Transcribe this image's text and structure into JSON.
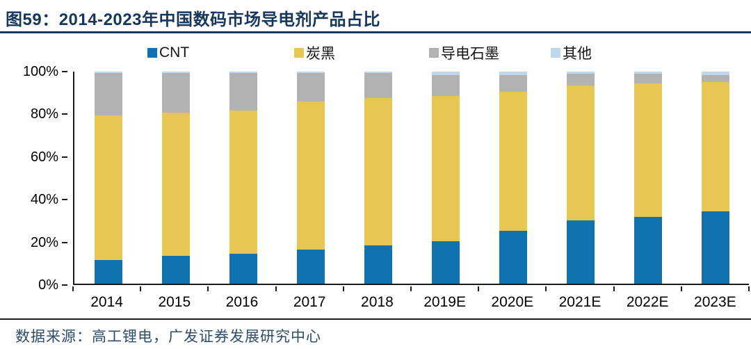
{
  "figure": {
    "title": "图59：2014-2023年中国数码市场导电剂产品占比",
    "source": "数据来源：高工锂电，广发证券发展研究中心"
  },
  "colors": {
    "title_navy": "#16365c",
    "axis_black": "#1a1a1a",
    "cnt_blue": "#1272b0",
    "carbon_black_yellow": "#e8c654",
    "graphite_gray": "#b2b2b2",
    "other_light_blue": "#bdd7ee"
  },
  "chart_data": {
    "type": "bar",
    "stacked": true,
    "unit": "%",
    "title": "图59：2014-2023年中国数码市场导电剂产品占比",
    "xlabel": "",
    "ylabel": "",
    "ylim": [
      0,
      100
    ],
    "grid": false,
    "legend_position": "top",
    "categories": [
      "2014",
      "2015",
      "2016",
      "2017",
      "2018",
      "2019E",
      "2020E",
      "2021E",
      "2022E",
      "2023E"
    ],
    "series": [
      {
        "name": "CNT",
        "color": "#1272b0",
        "values": [
          11,
          13,
          14,
          16,
          18,
          20,
          25,
          30,
          31.5,
          34
        ]
      },
      {
        "name": "炭黑",
        "color": "#e8c654",
        "values": [
          68.5,
          67.5,
          67.5,
          70,
          69.5,
          68.5,
          65.5,
          63.5,
          63,
          61
        ]
      },
      {
        "name": "导电石墨",
        "color": "#b2b2b2",
        "values": [
          20,
          19,
          18,
          13.5,
          12,
          10,
          8,
          5.5,
          4.5,
          3.5
        ]
      },
      {
        "name": "其他",
        "color": "#bdd7ee",
        "values": [
          0.5,
          0.5,
          0.5,
          0.5,
          0.5,
          1.5,
          1.5,
          1,
          1,
          1.5
        ]
      }
    ],
    "y_ticks": [
      {
        "label": "100%",
        "value": 100
      },
      {
        "label": "80%",
        "value": 80
      },
      {
        "label": "60%",
        "value": 60
      },
      {
        "label": "40%",
        "value": 40
      },
      {
        "label": "20%",
        "value": 20
      },
      {
        "label": "0%",
        "value": 0
      }
    ]
  }
}
